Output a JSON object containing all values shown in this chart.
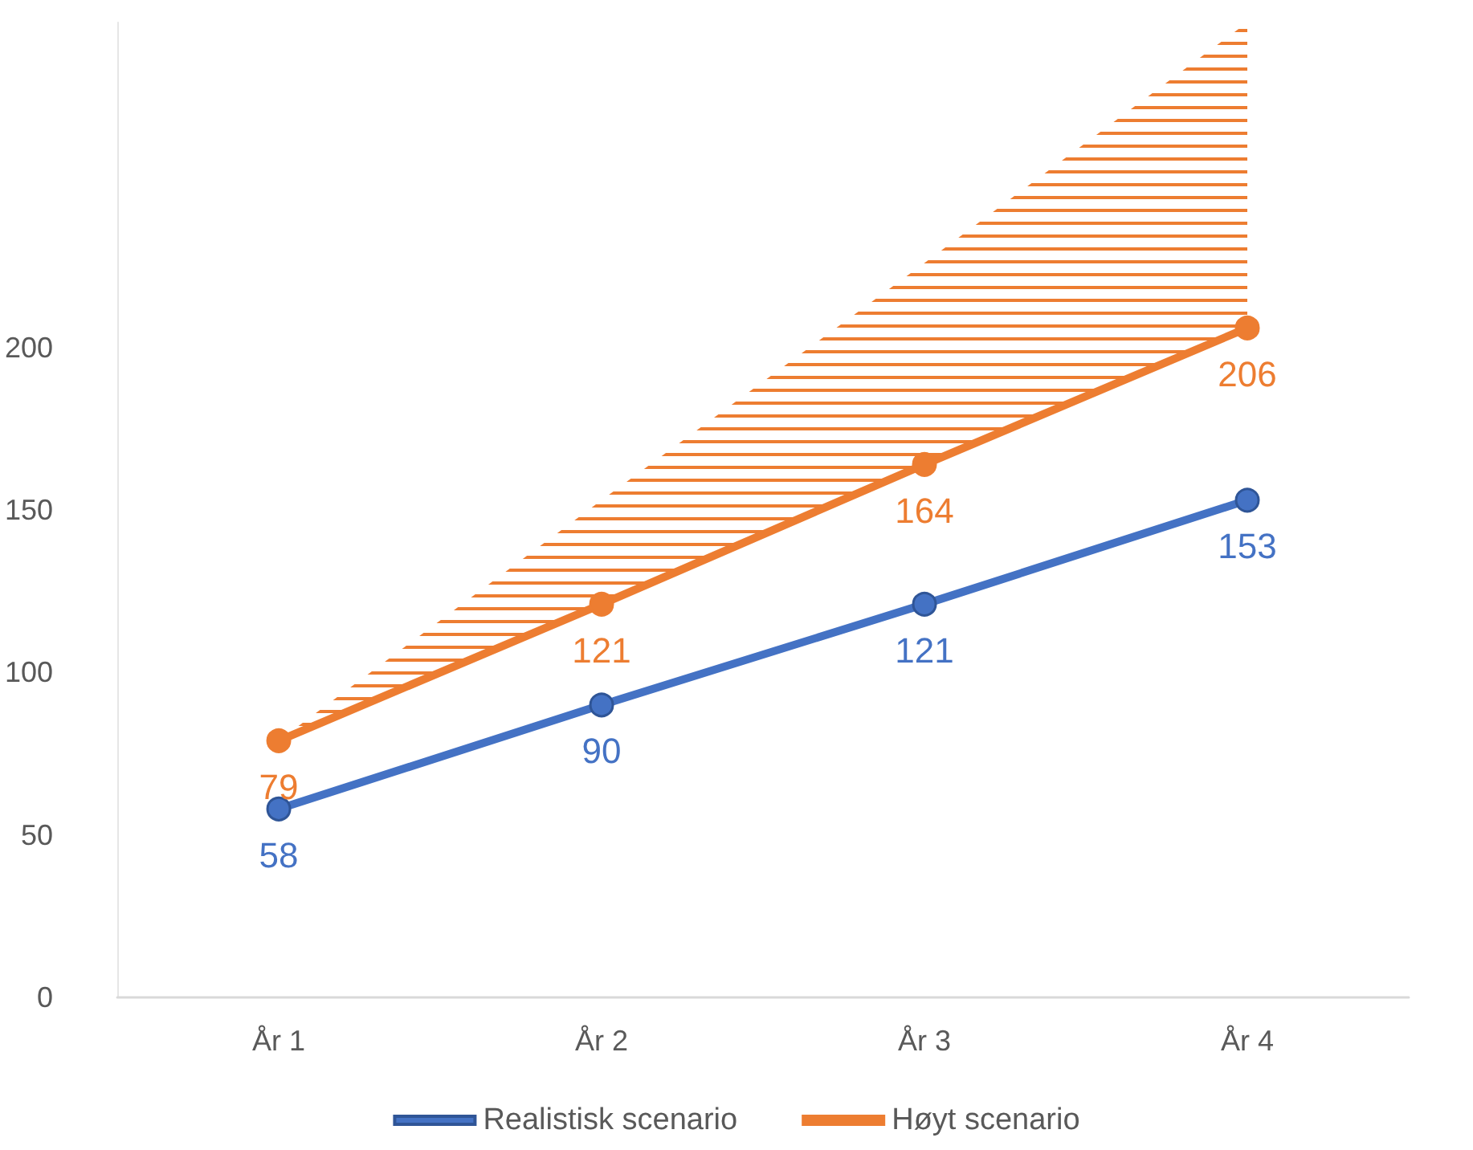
{
  "chart_data": {
    "type": "line",
    "categories": [
      "År 1",
      "År 2",
      "År 3",
      "År 4"
    ],
    "series": [
      {
        "name": "Realistisk scenario",
        "color": "#4472c4",
        "values": [
          58,
          90,
          121,
          153
        ]
      },
      {
        "name": "Høyt scenario",
        "color": "#ed7d31",
        "values": [
          79,
          121,
          164,
          206
        ],
        "lower": [
          79,
          121,
          164,
          206
        ],
        "upper": [
          79,
          153,
          226,
          300
        ]
      }
    ],
    "ylim": [
      0,
      300
    ],
    "yticks": [
      0,
      50,
      100,
      150,
      200
    ],
    "grid": false,
    "legend": "bottom",
    "marker": "circle",
    "line_style": "solid",
    "data_labels": true
  }
}
